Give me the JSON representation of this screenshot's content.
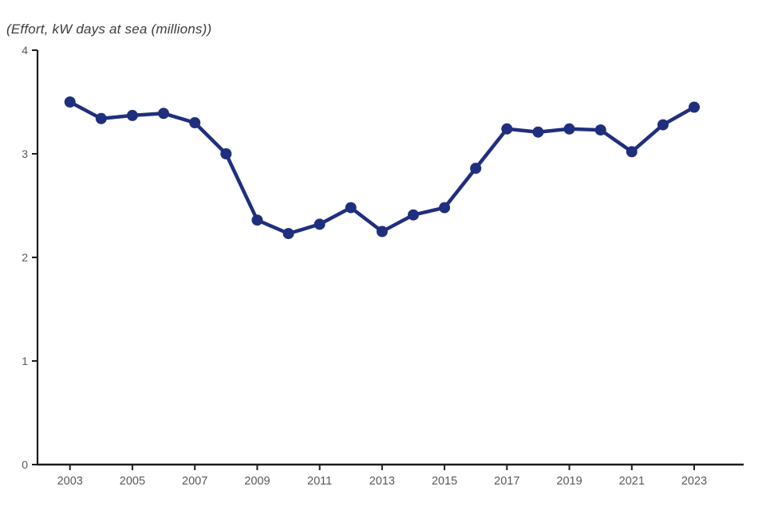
{
  "page": {
    "background": "#ffffff"
  },
  "chart_data": {
    "type": "line",
    "title": "(Effort, kW days at sea (millions))",
    "xlabel": "",
    "ylabel": "Effort, kW days at sea (millions)",
    "x": [
      2003,
      2004,
      2005,
      2006,
      2007,
      2008,
      2009,
      2010,
      2011,
      2012,
      2013,
      2014,
      2015,
      2016,
      2017,
      2018,
      2019,
      2020,
      2021,
      2022,
      2023
    ],
    "series": [
      {
        "name": "Effort (kW days at sea, millions)",
        "values": [
          3.5,
          3.34,
          3.37,
          3.39,
          3.3,
          3.0,
          2.36,
          2.23,
          2.32,
          2.48,
          2.25,
          2.41,
          2.48,
          2.86,
          3.24,
          3.21,
          3.24,
          3.23,
          3.02,
          3.28,
          3.45
        ]
      }
    ],
    "ylim": [
      0,
      4
    ],
    "yticks": [
      0,
      1,
      2,
      3,
      4
    ],
    "xtick_labels": [
      "2003",
      "2005",
      "2007",
      "2009",
      "2011",
      "2013",
      "2015",
      "2017",
      "2019",
      "2021",
      "2023"
    ],
    "grid": false,
    "legend_position": "none",
    "marker": "circle",
    "line_color": "#1f2f7e",
    "axis_color": "#1c1c1c",
    "tick_label_color": "#595959",
    "title_color": "#3c3c3c"
  }
}
